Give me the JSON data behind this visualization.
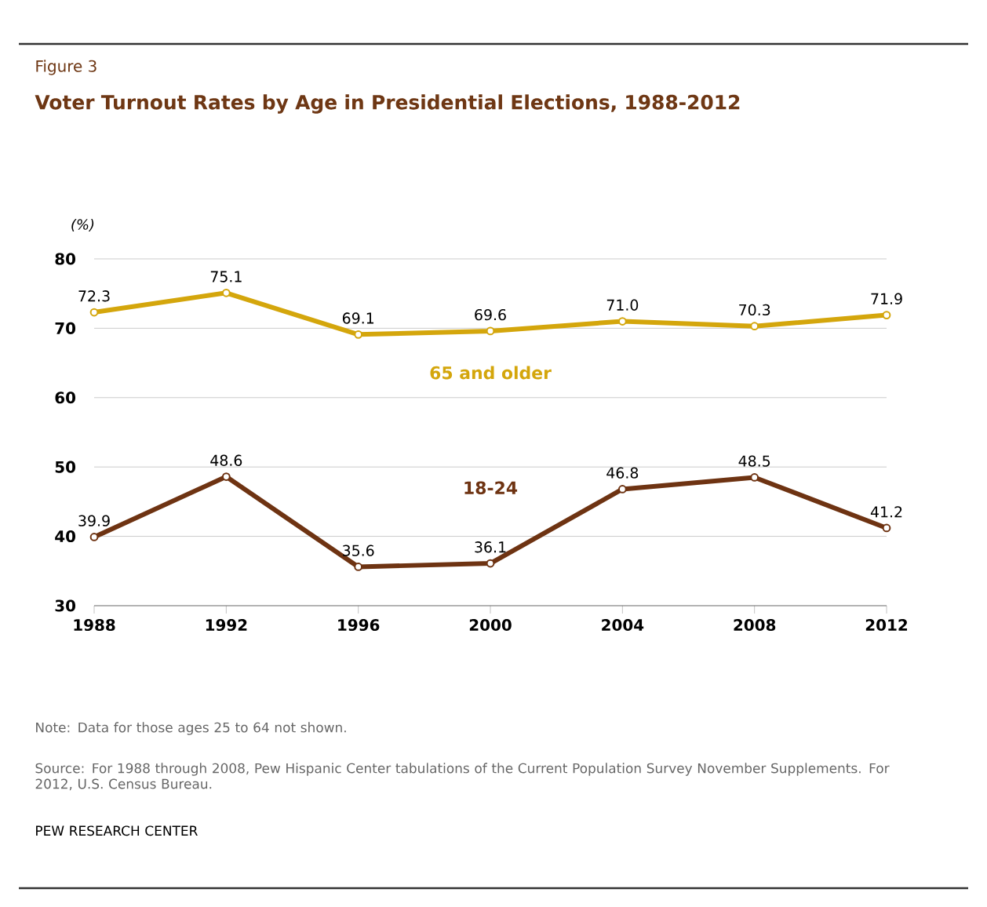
{
  "chart_data": {
    "type": "line",
    "title": "Voter Turnout Rates by Age in Presidential Elections, 1988-2012",
    "ylabel": "(%)",
    "x": [
      1988,
      1992,
      1996,
      2000,
      2004,
      2008,
      2012
    ],
    "series": [
      {
        "name": "65 and older",
        "color": "#d4a60c",
        "values": [
          72.3,
          75.1,
          69.1,
          69.6,
          71.0,
          70.3,
          71.9
        ],
        "value_labels": [
          "72.3",
          "75.1",
          "69.1",
          "69.6",
          "71.0",
          "70.3",
          "71.9"
        ]
      },
      {
        "name": "18-24",
        "color": "#6e3312",
        "values": [
          39.9,
          48.6,
          35.6,
          36.1,
          46.8,
          48.5,
          41.2
        ],
        "value_labels": [
          "39.9",
          "48.6",
          "35.6",
          "36.1",
          "46.8",
          "48.5",
          "41.2"
        ]
      }
    ],
    "xlim": [
      1988,
      2012
    ],
    "xticks": [
      1988,
      1992,
      1996,
      2000,
      2004,
      2008,
      2012
    ],
    "ylim": [
      30,
      80
    ],
    "yticks": [
      30,
      40,
      50,
      60,
      70,
      80
    ],
    "grid": "y",
    "legend": false,
    "marker": "circle",
    "line_style": "solid",
    "annotations": [
      "Figure 3",
      "Note: Data for those ages 25 to 64 not shown.",
      "Source:  For 1988 through 2008, Pew Hispanic Center tabulations of the Current Population Survey November Supplements. For 2012, U.S. Census Bureau.",
      "PEW RESEARCH CENTER"
    ]
  }
}
